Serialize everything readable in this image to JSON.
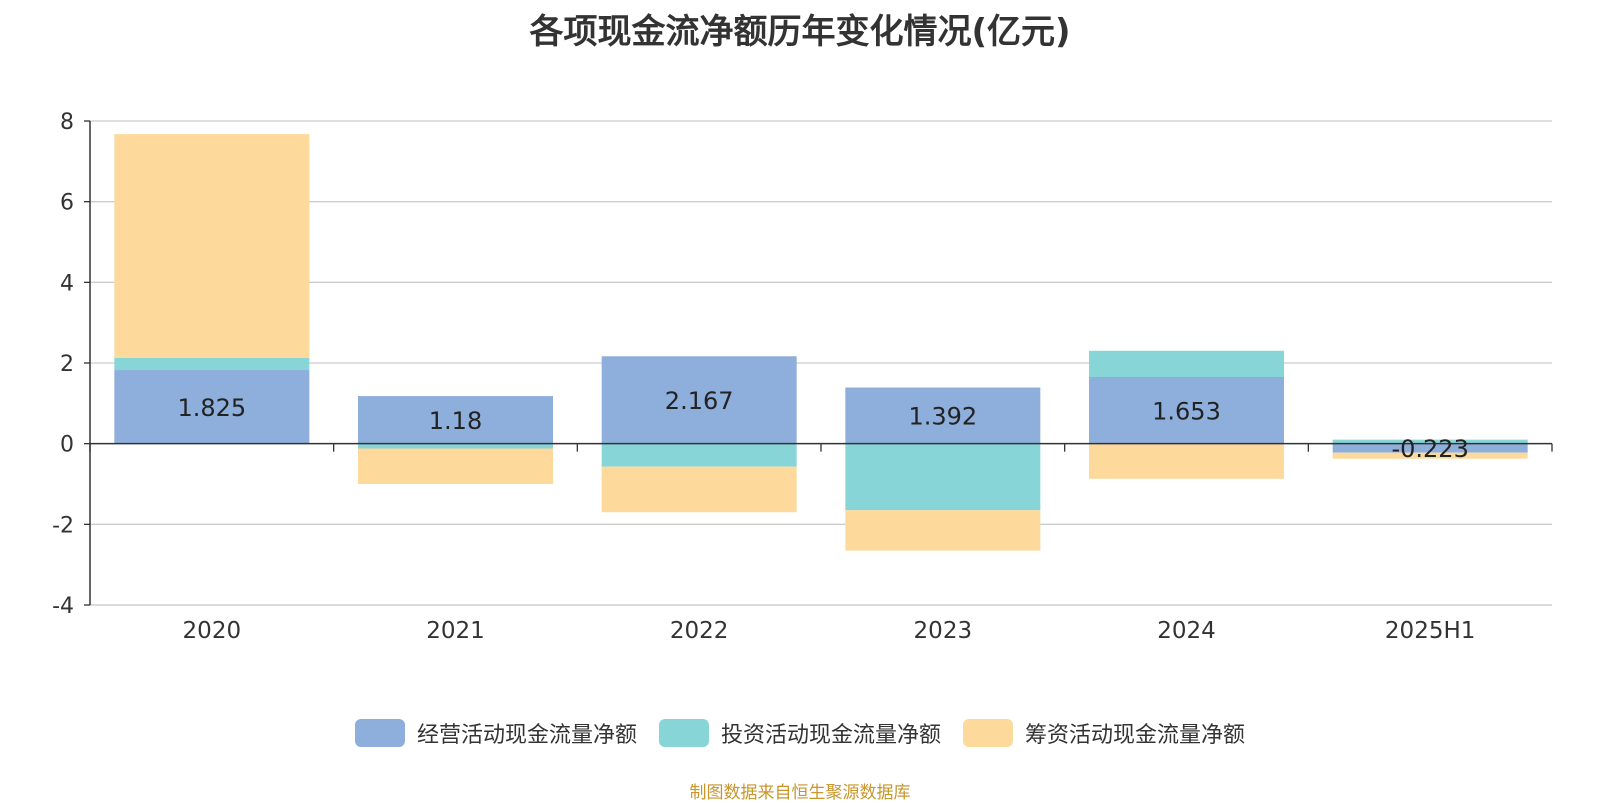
{
  "chart_data": {
    "type": "bar",
    "stacked": true,
    "title": "各项现金流净额历年变化情况(亿元)",
    "categories": [
      "2020",
      "2021",
      "2022",
      "2023",
      "2024",
      "2025H1"
    ],
    "series": [
      {
        "name": "经营活动现金流量净额",
        "color": "#8eaedb",
        "values": [
          1.825,
          1.18,
          2.167,
          1.392,
          1.653,
          -0.223
        ]
      },
      {
        "name": "投资活动现金流量净额",
        "color": "#88d5d7",
        "values": [
          0.3,
          -0.12,
          -0.57,
          -1.65,
          0.65,
          0.1
        ]
      },
      {
        "name": "筹资活动现金流量净额",
        "color": "#fdd99b",
        "values": [
          5.55,
          -0.88,
          -1.13,
          -1.0,
          -0.87,
          -0.15
        ]
      }
    ],
    "data_labels": [
      "1.825",
      "1.18",
      "2.167",
      "1.392",
      "1.653",
      "-0.223"
    ],
    "y_ticks": [
      "8",
      "6",
      "4",
      "2",
      "0",
      "-2",
      "-4"
    ],
    "ylim": [
      -4,
      8
    ],
    "grid": true,
    "legend_position": "bottom-center"
  },
  "source_note": "制图数据来自恒生聚源数据库"
}
